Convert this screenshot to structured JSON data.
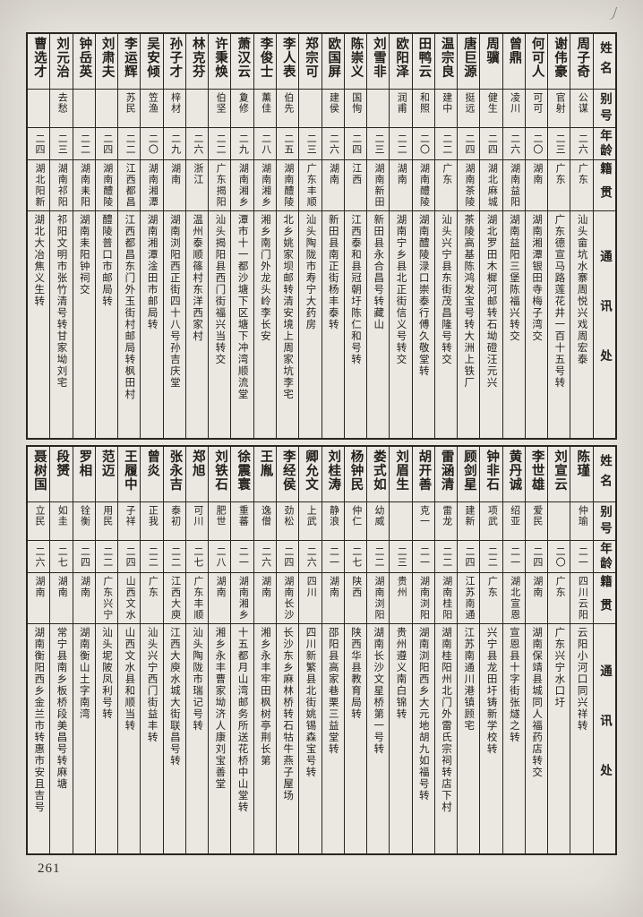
{
  "page": {
    "number": "261"
  },
  "header_labels": [
    "姓名",
    "别号",
    "年龄",
    "籍贯",
    "通讯处"
  ],
  "tables": [
    {
      "people": [
        {
          "name": "周子奇",
          "alias": "公谋",
          "age": "二六",
          "native": "广东",
          "address": "汕头畲坑水寨周悦兴戏周宏泰"
        },
        {
          "name": "谢伟豪",
          "alias": "官射",
          "age": "二三",
          "native": "广东",
          "address": "广东德宣马路莲花井一百十五号转"
        },
        {
          "name": "何可人",
          "alias": "可可",
          "age": "二〇",
          "native": "湖南",
          "address": "湖南湘潭银田寺梅子湾交"
        },
        {
          "name": "曾鼎",
          "alias": "凌川",
          "age": "二六",
          "native": "湖南益阳",
          "address": "湖南益阳三堡陈福兴转交"
        },
        {
          "name": "周骥",
          "alias": "健生",
          "age": "二四",
          "native": "湖北麻城",
          "address": "湖北罗田木樨河邮转石坳磴汪元兴"
        },
        {
          "name": "唐巨源",
          "alias": "挺远",
          "age": "二四",
          "native": "湖南茶陵",
          "address": "茶陵高基陈鸿发宝号转大洲上铁厂"
        },
        {
          "name": "温宗良",
          "alias": "建中",
          "age": "二二",
          "native": "广东",
          "address": "汕头兴宁县东街茂昌隆号转交"
        },
        {
          "name": "田鸭云",
          "alias": "和照",
          "age": "二〇",
          "native": "湖南醴陵",
          "address": "湖南醴陵渌口崇泰行傅久敬堂转"
        },
        {
          "name": "欧阳泽",
          "alias": "润甫",
          "age": "二二",
          "native": "湖南",
          "address": "湖南宁乡县北正街信义号转交"
        },
        {
          "name": "刘雪非",
          "alias": "",
          "age": "二三",
          "native": "湖南新田",
          "address": "新田县永合昌号转藏山"
        },
        {
          "name": "陈崇义",
          "alias": "国恂",
          "age": "二四",
          "native": "江西",
          "address": "江西泰和县冠朝圩陈仁和号转"
        },
        {
          "name": "欧国屏",
          "alias": "建侯",
          "age": "二六",
          "native": "湖南",
          "address": "新田县南正街杨丰泰转"
        },
        {
          "name": "郑宗可",
          "alias": "",
          "age": "二三",
          "native": "广东丰顺",
          "address": "汕头陶陇市寿宁大药房"
        },
        {
          "name": "李人表",
          "alias": "伯先",
          "age": "二五",
          "native": "湖南醴陵",
          "address": "北乡姚家坝邮转清安境上周家坑李宅"
        },
        {
          "name": "李俊士",
          "alias": "薰佳",
          "age": "二八",
          "native": "湖南湘乡",
          "address": "湘乡南门外龙头岭李长安"
        },
        {
          "name": "萧汉云",
          "alias": "夐修",
          "age": "二九",
          "native": "湖南湘乡",
          "address": "潭市十一都沙塘下区塘下冲湾顺流堂"
        },
        {
          "name": "许秉焕",
          "alias": "伯坚",
          "age": "二二",
          "native": "广东揭阳",
          "address": "汕头揭阳县西门街福兴当转交"
        },
        {
          "name": "林克芬",
          "alias": "",
          "age": "二六",
          "native": "浙江",
          "address": "温州泰顺篠村东洋西家村"
        },
        {
          "name": "孙子才",
          "alias": "梓材",
          "age": "二九",
          "native": "湖南",
          "address": "湖南浏阳西正街四十八号孙吉庆堂"
        },
        {
          "name": "吴安倾",
          "alias": "笠渔",
          "age": "二〇",
          "native": "湖南湘潭",
          "address": "湖南湘潭淦田市邮局转"
        },
        {
          "name": "李运辉",
          "alias": "苏民",
          "age": "二二",
          "native": "江西都昌",
          "address": "江西都昌东门外玉街村邮局转枫田村"
        },
        {
          "name": "刘肃夫",
          "alias": "",
          "age": "二四",
          "native": "湖南醴陵",
          "address": "醴陵普口市邮局转"
        },
        {
          "name": "钟岳英",
          "alias": "",
          "age": "二二",
          "native": "湖南耒阳",
          "address": "湖南耒阳钟祠交"
        },
        {
          "name": "刘元治",
          "alias": "去愁",
          "age": "二三",
          "native": "湖南祁阳",
          "address": "祁阳文明市张竹清号转甘家坳刘宅"
        },
        {
          "name": "曹选才",
          "alias": "",
          "age": "二四",
          "native": "湖北阳新",
          "address": "湖北大冶焦义生转"
        }
      ]
    },
    {
      "people": [
        {
          "name": "陈瑾",
          "alias": "仲瑜",
          "age": "二一",
          "native": "四川云阳",
          "address": "云阳小河口同兴祥转"
        },
        {
          "name": "刘宣云",
          "alias": "",
          "age": "二〇",
          "native": "广东",
          "address": "广东兴宁水口圩"
        },
        {
          "name": "李世雄",
          "alias": "爱民",
          "age": "二四",
          "native": "湖南",
          "address": "湖南保靖县城同人福药店转交"
        },
        {
          "name": "黄丹诚",
          "alias": "绍亚",
          "age": "二一",
          "native": "湖北宣恩",
          "address": "宣恩县十字街张燧之转"
        },
        {
          "name": "钟非石",
          "alias": "项武",
          "age": "二二",
          "native": "广东",
          "address": "兴宁县龙田圩铸新学校转"
        },
        {
          "name": "顾剑星",
          "alias": "建新",
          "age": "二四",
          "native": "江苏南通",
          "address": "江苏南通川港镇顾宅"
        },
        {
          "name": "雷涵清",
          "alias": "雷龙",
          "age": "二二",
          "native": "湖南桂阳",
          "address": "湖南桂阳州北门外雷氏宗祠转店下村"
        },
        {
          "name": "胡开善",
          "alias": "克一",
          "age": "二一",
          "native": "湖南浏阳",
          "address": "湖南浏阳西乡大元地胡九如福号转"
        },
        {
          "name": "刘眉生",
          "alias": "",
          "age": "二三",
          "native": "贵州",
          "address": "贵州遵义南白锦转"
        },
        {
          "name": "娄式如",
          "alias": "幼威",
          "age": "二二",
          "native": "湖南浏阳",
          "address": "湖南长沙文星桥第一号转"
        },
        {
          "name": "杨钟民",
          "alias": "仲仁",
          "age": "二七",
          "native": "陕西",
          "address": "陕西华县教育局转"
        },
        {
          "name": "刘桂涛",
          "alias": "静浪",
          "age": "二一",
          "native": "湖南",
          "address": "邵阳县高家巷栗三益堂转"
        },
        {
          "name": "卿允文",
          "alias": "上武",
          "age": "二六",
          "native": "四川",
          "address": "四川新繁县北街姚锡森宝号转"
        },
        {
          "name": "李经侯",
          "alias": "劲松",
          "age": "二四",
          "native": "湖南长沙",
          "address": "长沙东乡麻林桥转石牯牛燕子屋场"
        },
        {
          "name": "王胤",
          "alias": "逸僧",
          "age": "二六",
          "native": "湖南",
          "address": "湘乡永丰牢田枫树亭荆长第"
        },
        {
          "name": "徐震寰",
          "alias": "重蕃",
          "age": "二一",
          "native": "湖南湘乡",
          "address": "十五都月山湾邮务所送花桥中山堂转"
        },
        {
          "name": "刘铁石",
          "alias": "肥世",
          "age": "二八",
          "native": "湖南",
          "address": "湘乡永丰曹家坳济人康刘宝善堂"
        },
        {
          "name": "郑旭",
          "alias": "可川",
          "age": "二七",
          "native": "广东丰顺",
          "address": "汕头陶陇市瑞记号转"
        },
        {
          "name": "张永吉",
          "alias": "泰初",
          "age": "二二",
          "native": "江西大庾",
          "address": "江西大庾水城大街联昌号转"
        },
        {
          "name": "曾炎",
          "alias": "正我",
          "age": "二二",
          "native": "广东",
          "address": "汕头兴宁西门街益丰转"
        },
        {
          "name": "王履中",
          "alias": "子祥",
          "age": "二四",
          "native": "山西文水",
          "address": "山西文水县和顺当转"
        },
        {
          "name": "范迈",
          "alias": "用民",
          "age": "二二",
          "native": "广东兴宁",
          "address": "汕头坭陂凤利号转"
        },
        {
          "name": "罗相",
          "alias": "铨衡",
          "age": "二四",
          "native": "湖南",
          "address": "湖南衡山土字南湾"
        },
        {
          "name": "段赟",
          "alias": "如圭",
          "age": "二七",
          "native": "湖南",
          "address": "常宁县南乡板桥段美昌号转麻塘"
        },
        {
          "name": "聂树国",
          "alias": "立民",
          "age": "二六",
          "native": "湖南",
          "address": "湖南衡阳西乡金兰市转惠市安且吉号"
        }
      ]
    }
  ]
}
